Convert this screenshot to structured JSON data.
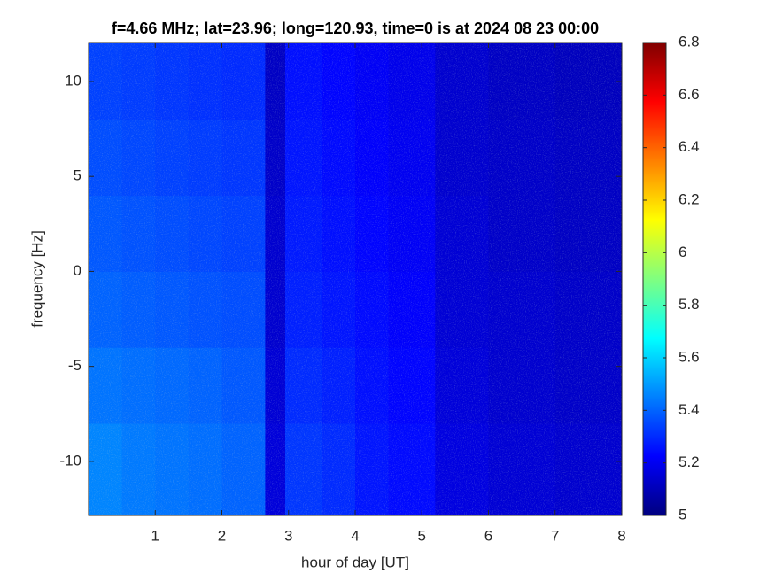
{
  "chart_data": {
    "type": "heatmap",
    "title": "f=4.66 MHz;  lat=23.96; long=120.93, time=0 is at 2024 08 23 00:00",
    "xlabel": "hour of day [UT]",
    "ylabel": "frequency [Hz]",
    "xlim": [
      0,
      8
    ],
    "xticks": [
      1,
      2,
      3,
      4,
      5,
      6,
      7,
      8
    ],
    "ylim": [
      -12.85,
      12.05
    ],
    "yticks": [
      -10,
      -5,
      0,
      5,
      10
    ],
    "xbins": [
      0,
      0.5,
      1,
      1.5,
      2,
      2.65,
      2.95,
      3.5,
      4,
      4.5,
      5.2,
      6,
      7,
      8
    ],
    "ybins": [
      -12.85,
      -8,
      -4,
      0,
      4,
      8,
      12.05
    ],
    "values": [
      [
        5.46,
        5.44,
        5.43,
        5.42,
        5.4,
        5.16,
        5.32,
        5.3,
        5.26,
        5.24,
        5.17,
        5.15,
        5.14
      ],
      [
        5.43,
        5.42,
        5.41,
        5.4,
        5.38,
        5.15,
        5.3,
        5.28,
        5.25,
        5.23,
        5.16,
        5.14,
        5.13
      ],
      [
        5.4,
        5.39,
        5.38,
        5.37,
        5.36,
        5.14,
        5.28,
        5.26,
        5.24,
        5.22,
        5.15,
        5.14,
        5.13
      ],
      [
        5.38,
        5.37,
        5.36,
        5.35,
        5.34,
        5.14,
        5.27,
        5.25,
        5.23,
        5.21,
        5.15,
        5.13,
        5.12
      ],
      [
        5.36,
        5.35,
        5.34,
        5.33,
        5.32,
        5.13,
        5.26,
        5.24,
        5.22,
        5.2,
        5.14,
        5.13,
        5.12
      ],
      [
        5.34,
        5.33,
        5.32,
        5.31,
        5.3,
        5.12,
        5.25,
        5.23,
        5.21,
        5.19,
        5.14,
        5.12,
        5.11
      ]
    ],
    "colormap": "jet",
    "clim": [
      5,
      6.8
    ],
    "cticks": [
      5,
      5.2,
      5.4,
      5.6,
      5.8,
      6,
      6.2,
      6.4,
      6.6,
      6.8
    ]
  }
}
